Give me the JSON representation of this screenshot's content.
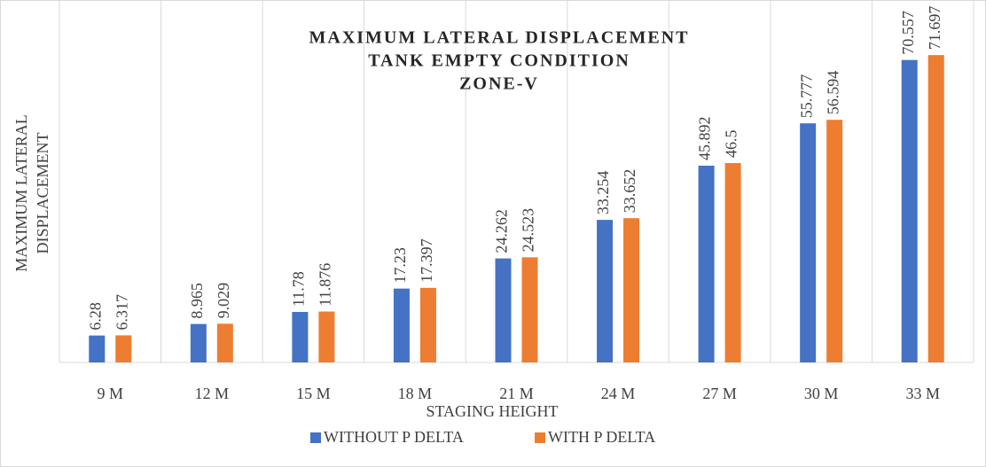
{
  "chart_data": {
    "type": "bar",
    "title": [
      "MAXIMUM LATERAL DISPLACEMENT",
      "TANK EMPTY CONDITION",
      "ZONE-V"
    ],
    "y_label": [
      "MAXIMUM LATERAL",
      "DISPLACEMENT"
    ],
    "x_label": "STAGING HEIGHT",
    "categories": [
      "9 M",
      "12 M",
      "15 M",
      "18 M",
      "21 M",
      "24 M",
      "27 M",
      "30 M",
      "33 M"
    ],
    "series": [
      {
        "name": "WITHOUT P DELTA",
        "color": "#4472c4",
        "values": [
          6.28,
          8.965,
          11.78,
          17.23,
          24.262,
          33.254,
          45.892,
          55.777,
          70.557
        ]
      },
      {
        "name": "WITH P DELTA",
        "color": "#ed7d31",
        "values": [
          6.317,
          9.029,
          11.876,
          17.397,
          24.523,
          33.652,
          46.5,
          56.594,
          71.697
        ]
      }
    ],
    "ylim": [
      0,
      80
    ],
    "grid": true,
    "legend": "bottom"
  }
}
